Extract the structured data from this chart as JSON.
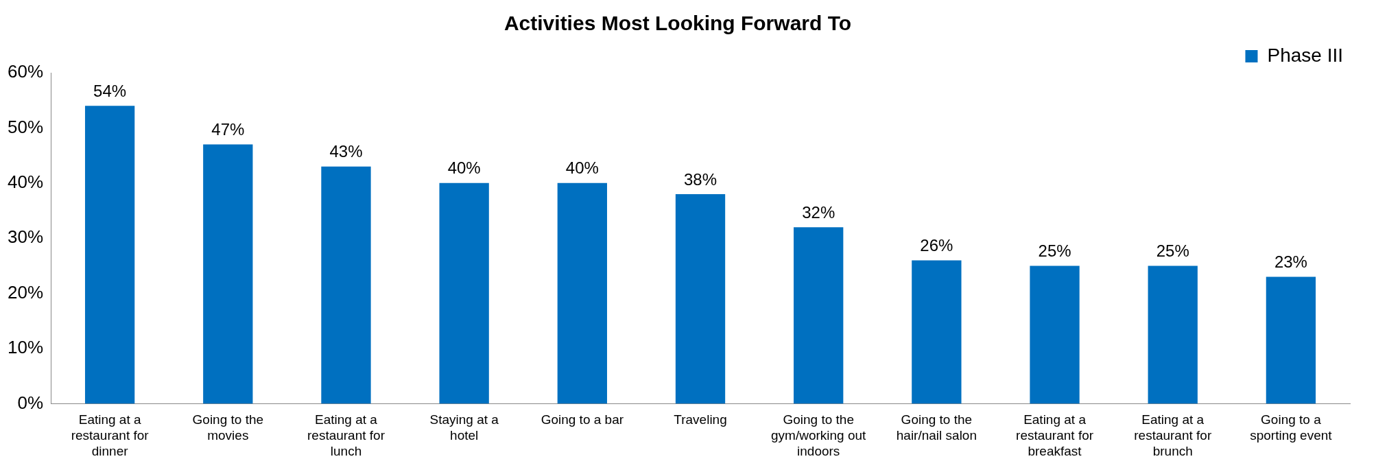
{
  "chart_data": {
    "type": "bar",
    "title": "Activities Most Looking Forward To",
    "categories": [
      "Eating at a restaurant for dinner",
      "Going to the movies",
      "Eating at a restaurant for lunch",
      "Staying at a hotel",
      "Going to a bar",
      "Traveling",
      "Going to the gym/working out indoors",
      "Going to the hair/nail salon",
      "Eating at a restaurant for breakfast",
      "Eating at a restaurant for brunch",
      "Going to a sporting event"
    ],
    "series": [
      {
        "name": "Phase III",
        "color": "#0070c0",
        "values": [
          54,
          47,
          43,
          40,
          40,
          38,
          32,
          26,
          25,
          25,
          23
        ],
        "value_labels": [
          "54%",
          "47%",
          "43%",
          "40%",
          "40%",
          "38%",
          "32%",
          "26%",
          "25%",
          "25%",
          "23%"
        ]
      }
    ],
    "ylim": [
      0,
      60
    ],
    "yticks": [
      {
        "value": 0,
        "label": "0%"
      },
      {
        "value": 10,
        "label": "10%"
      },
      {
        "value": 20,
        "label": "20%"
      },
      {
        "value": 30,
        "label": "30%"
      },
      {
        "value": 40,
        "label": "40%"
      },
      {
        "value": 50,
        "label": "50%"
      },
      {
        "value": 60,
        "label": "60%"
      }
    ],
    "grid": false,
    "legend": "top right"
  }
}
